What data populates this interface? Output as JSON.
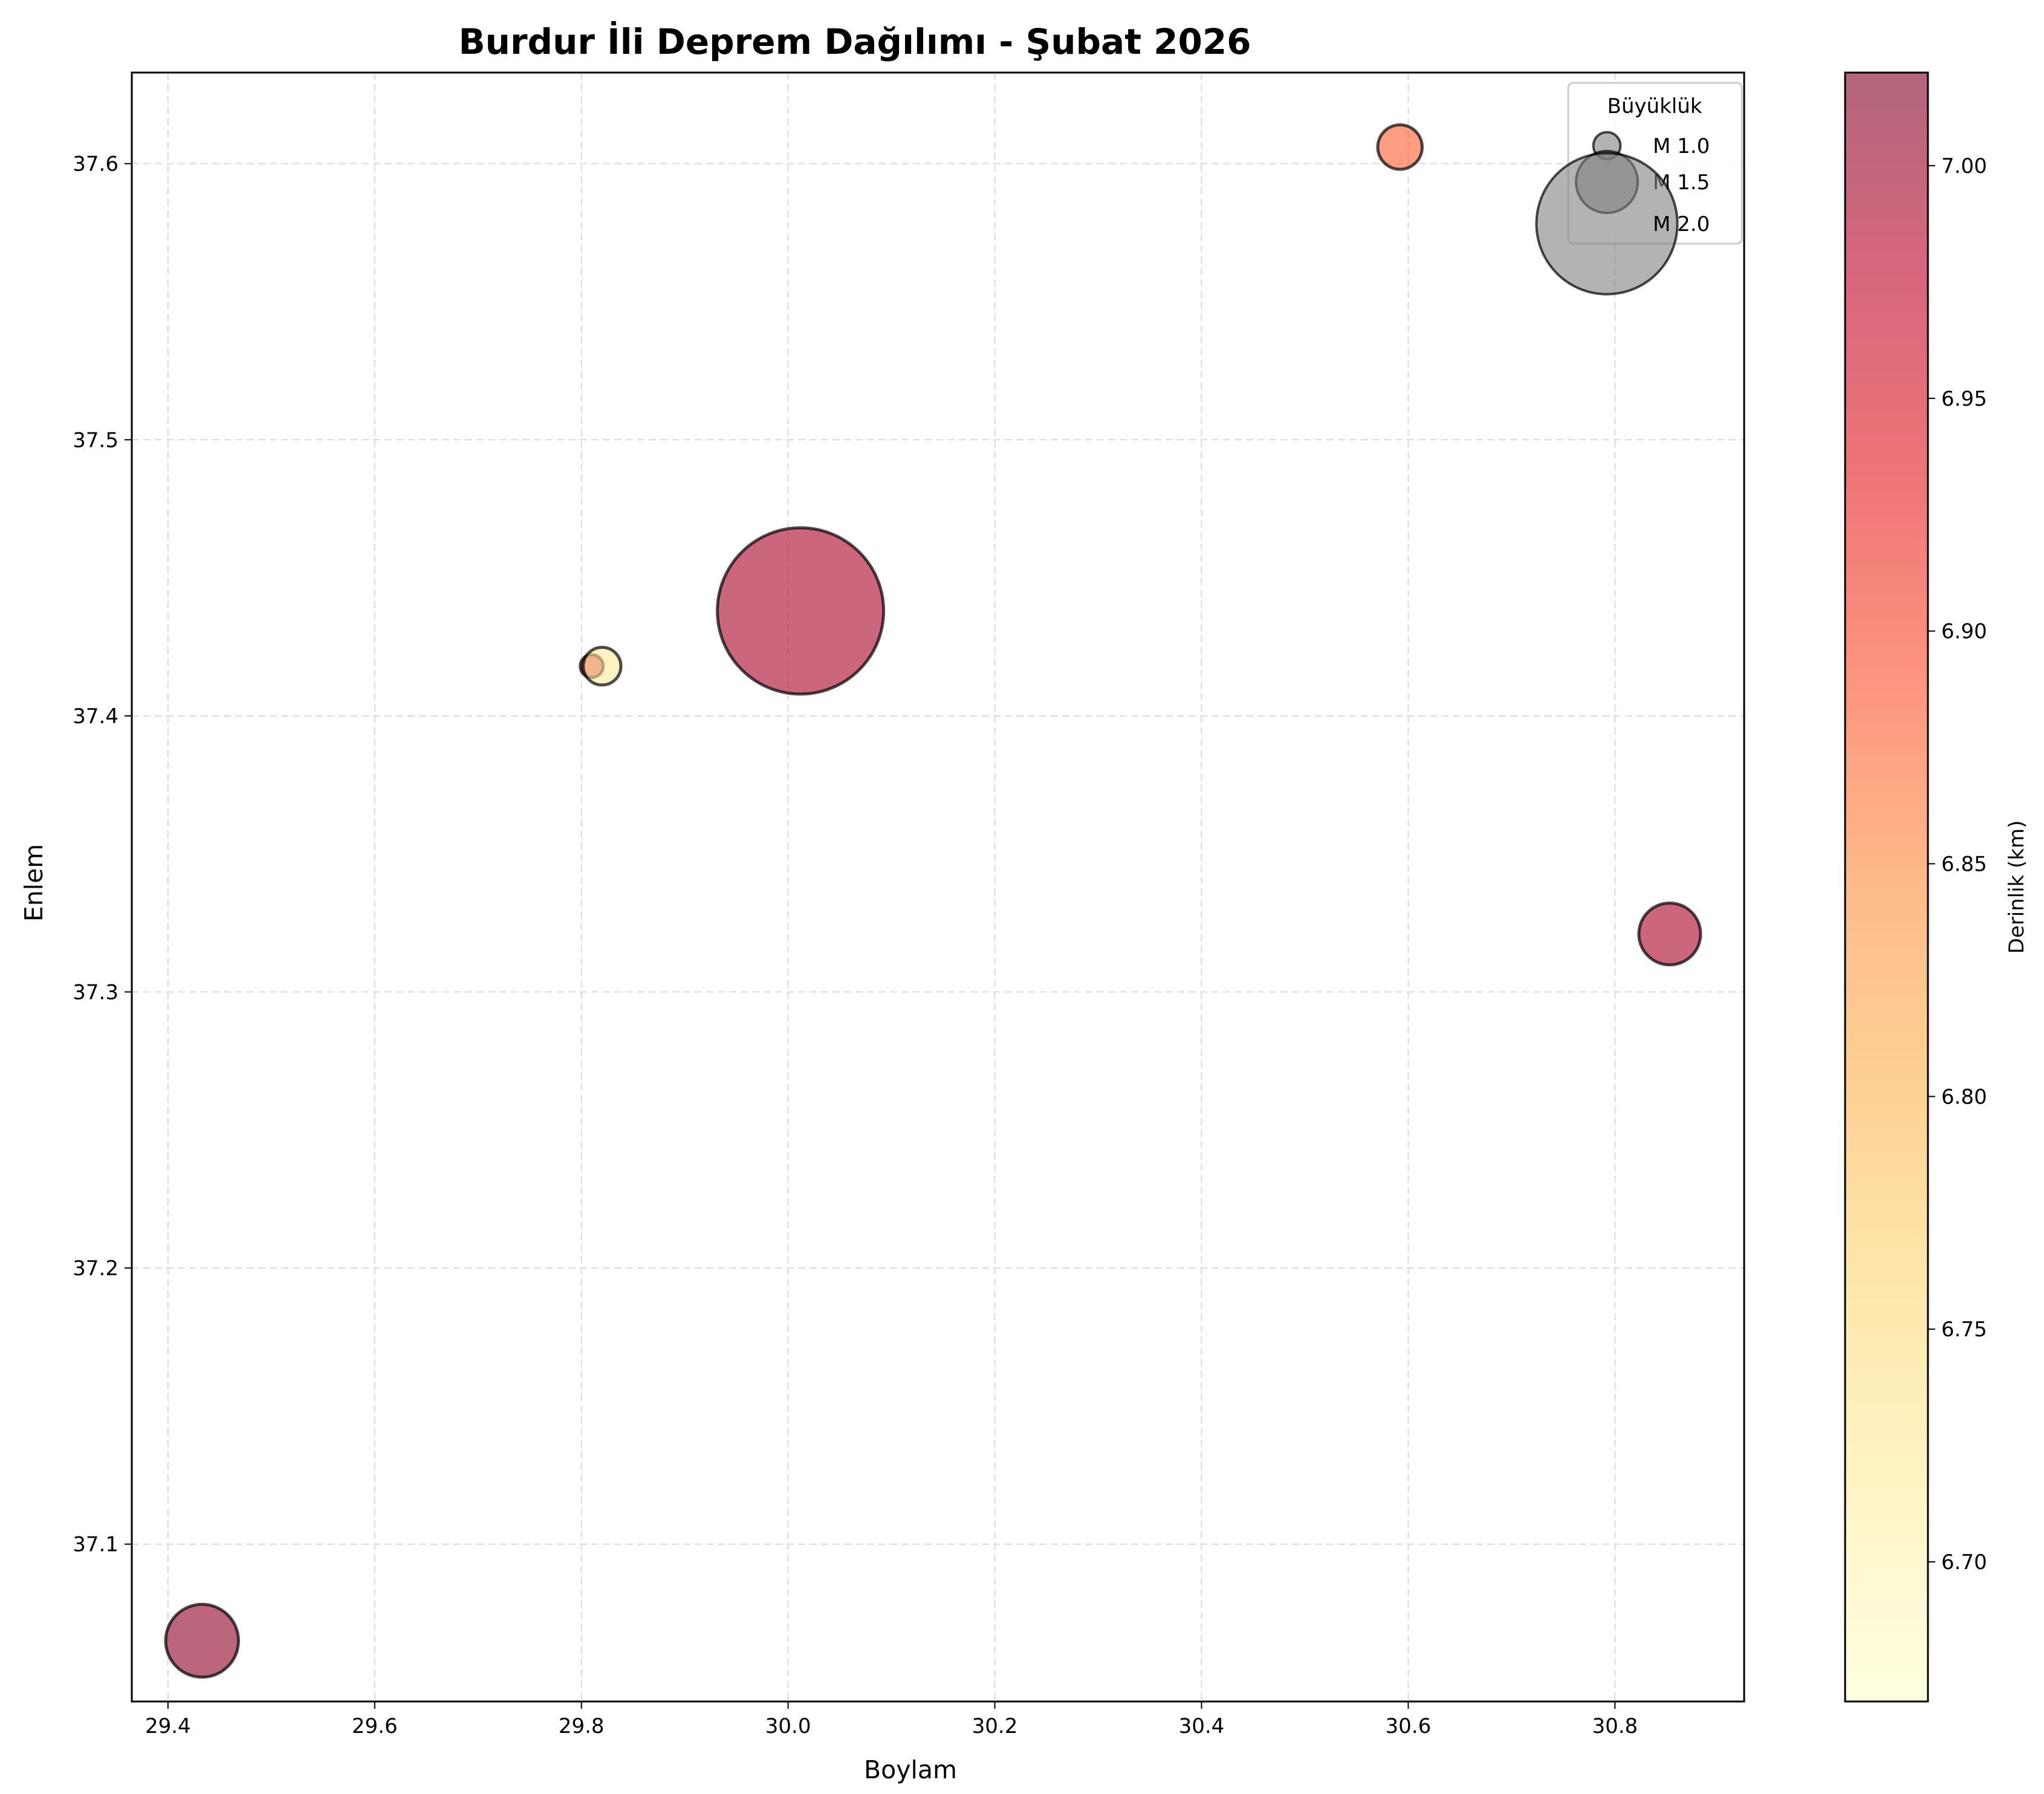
{
  "chart_data": {
    "type": "scatter",
    "title": "Burdur İli Deprem Dağılımı - Şubat 2026",
    "xlabel": "Boylam",
    "ylabel": "Enlem",
    "xlim": [
      29.365,
      30.925
    ],
    "ylim": [
      37.043,
      37.633
    ],
    "xticks": [
      "29.4",
      "29.6",
      "29.8",
      "30.0",
      "30.2",
      "30.4",
      "30.6",
      "30.8"
    ],
    "yticks": [
      "37.1",
      "37.2",
      "37.3",
      "37.4",
      "37.5",
      "37.6"
    ],
    "grid": true,
    "points": [
      {
        "x": 29.433,
        "y": 37.065,
        "magnitude": 1.6,
        "depth": 7.01
      },
      {
        "x": 29.81,
        "y": 37.418,
        "magnitude": 0.9,
        "depth": 6.97
      },
      {
        "x": 29.82,
        "y": 37.418,
        "magnitude": 1.2,
        "depth": 6.72
      },
      {
        "x": 30.012,
        "y": 37.438,
        "magnitude": 2.1,
        "depth": 6.99
      },
      {
        "x": 30.592,
        "y": 37.606,
        "magnitude": 1.3,
        "depth": 6.88
      },
      {
        "x": 30.853,
        "y": 37.321,
        "magnitude": 1.5,
        "depth": 6.99
      }
    ],
    "legend": {
      "title": "Büyüklük",
      "placement": "top-right",
      "items": [
        {
          "label": "M 1.0",
          "magnitude": 1.0
        },
        {
          "label": "M 1.5",
          "magnitude": 1.5
        },
        {
          "label": "M 2.0",
          "magnitude": 2.0
        }
      ]
    },
    "colorbar": {
      "label": "Derinlik (km)",
      "range": [
        6.67,
        7.02
      ],
      "ticks": [
        "6.70",
        "6.75",
        "6.80",
        "6.85",
        "6.90",
        "6.95",
        "7.00"
      ],
      "colormap": [
        "#ffffcc",
        "#ffeda0",
        "#fed976",
        "#feb24c",
        "#fd8d3c",
        "#fc4e2a",
        "#e31a1c",
        "#bd0026",
        "#800026"
      ]
    }
  }
}
